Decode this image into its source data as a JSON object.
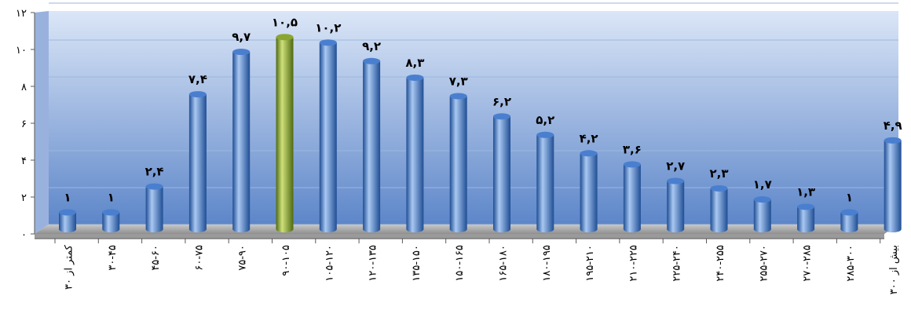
{
  "chart_data": {
    "type": "bar",
    "title": "",
    "xlabel": "",
    "ylabel": "",
    "ylim": [
      0,
      12
    ],
    "yticks": [
      0,
      2,
      4,
      6,
      8,
      10,
      12
    ],
    "ytick_labels": [
      "۰",
      "۲",
      "۴",
      "۶",
      "۸",
      "۱۰",
      "۱۲"
    ],
    "grid": true,
    "categories": [
      "کمتر از ۳۰",
      "۳۰-۴۵",
      "۴۵-۶۰",
      "۶۰-۷۵",
      "۷۵-۹۰",
      "۹۰-۱۰۵",
      "۱۰۵-۱۲۰",
      "۱۲۰-۱۳۵",
      "۱۳۵-۱۵۰",
      "۱۵۰-۱۶۵",
      "۱۶۵-۱۸۰",
      "۱۸۰-۱۹۵",
      "۱۹۵-۲۱۰",
      "۲۱۰-۲۲۵",
      "۲۲۵-۲۴۰",
      "۲۴۰-۲۵۵",
      "۲۵۵-۲۷۰",
      "۲۷۰-۲۸۵",
      "۲۸۵-۳۰۰",
      "بیش از ۳۰۰"
    ],
    "values": [
      1,
      1,
      2.4,
      7.4,
      9.7,
      10.5,
      10.2,
      9.2,
      8.3,
      7.3,
      6.2,
      5.2,
      4.2,
      3.6,
      2.7,
      2.3,
      1.7,
      1.3,
      1,
      4.9
    ],
    "value_labels": [
      "۱",
      "۱",
      "۲,۴",
      "۷,۴",
      "۹,۷",
      "۱۰,۵",
      "۱۰,۲",
      "۹,۲",
      "۸,۳",
      "۷,۳",
      "۶,۲",
      "۵,۲",
      "۴,۲",
      "۳,۶",
      "۲,۷",
      "۲,۳",
      "۱,۷",
      "۱,۳",
      "۱",
      "۴,۹"
    ],
    "highlight_index": 5,
    "colors": {
      "bar": "#4a7fcf",
      "bar_dark": "#1f4e94",
      "bar_light": "#a9c8f2",
      "highlight": "#8aa630",
      "highlight_dark": "#4f6a12",
      "highlight_light": "#cfe07a",
      "wall_top": "#dbe6f7",
      "wall_bottom": "#5d86c9",
      "floor": "#a8a8a8",
      "axis": "#595959",
      "grid": "#9db6df"
    }
  }
}
